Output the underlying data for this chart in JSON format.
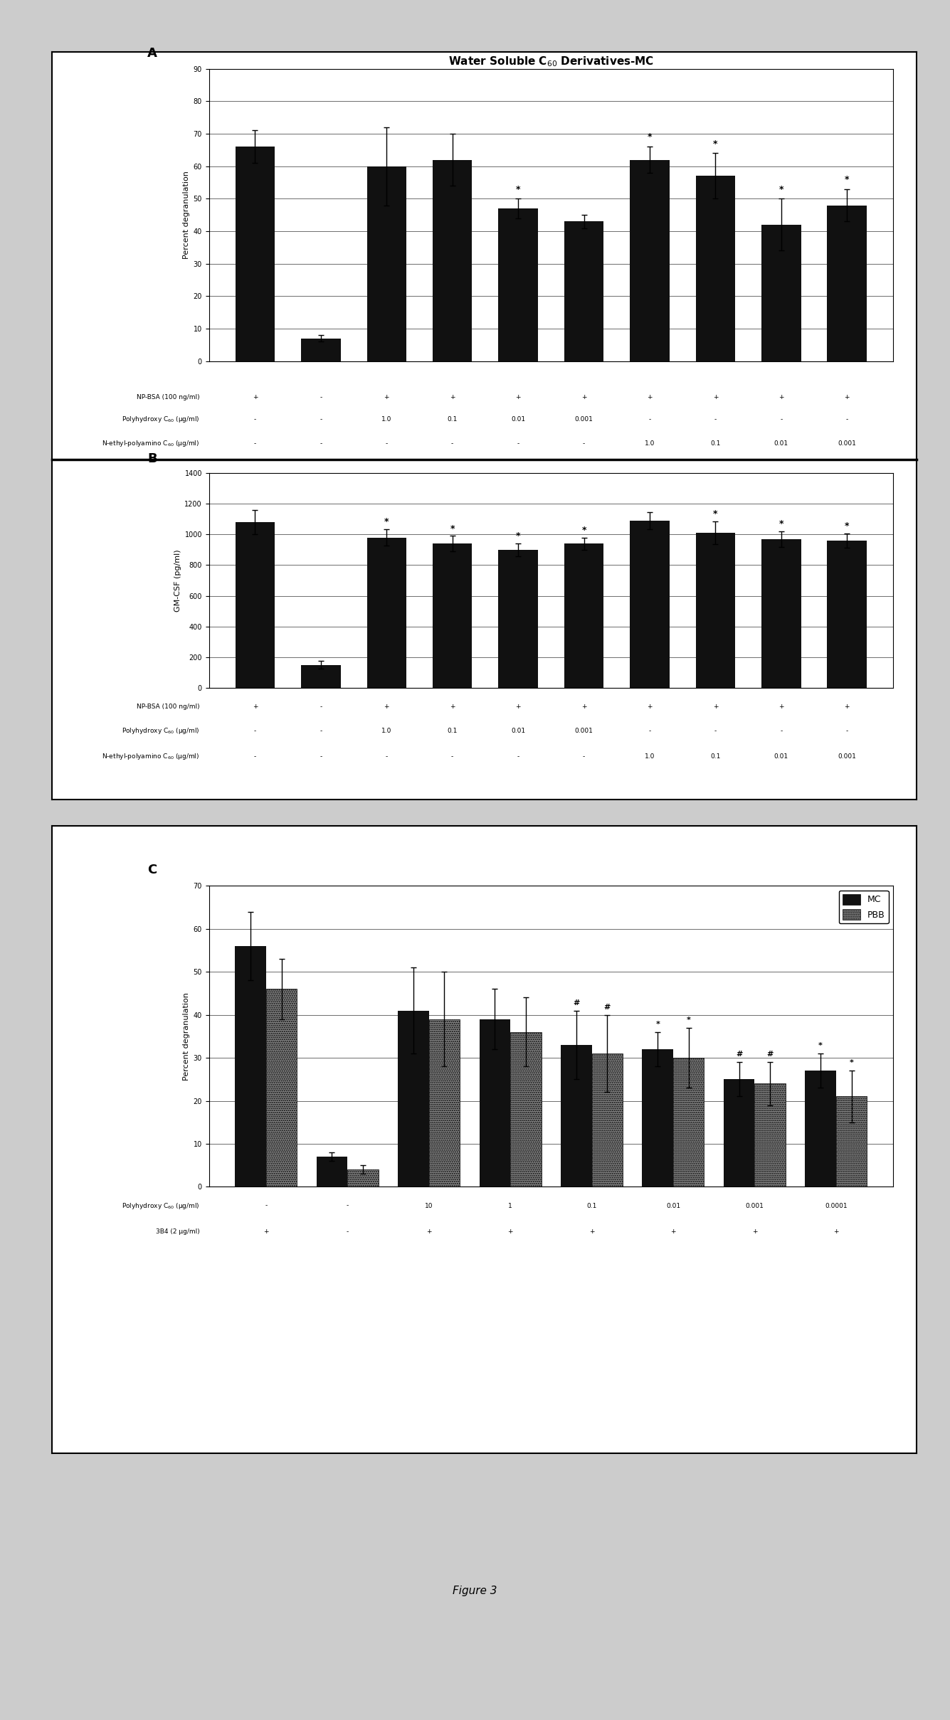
{
  "title": "Water Soluble C$_{60}$ Derivatives-MC",
  "panel_A": {
    "label": "A",
    "ylabel": "Percent degranulation",
    "ylim": [
      0,
      90
    ],
    "yticks": [
      0,
      10,
      20,
      30,
      40,
      50,
      60,
      70,
      80,
      90
    ],
    "bar_values": [
      66,
      7,
      60,
      62,
      47,
      43,
      62,
      57,
      42,
      48
    ],
    "bar_errors": [
      5,
      1,
      12,
      8,
      3,
      2,
      4,
      7,
      8,
      5
    ],
    "star_indices": [
      4,
      6,
      7,
      8,
      9
    ],
    "row1_label": "NP-BSA (100 ng/ml)",
    "row2_label": "Polyhydroxy C$_{60}$ (μg/ml)",
    "row3_label": "N-ethyl-polyamino C$_{60}$ (μg/ml)",
    "row1_values": [
      "+",
      "-",
      "+",
      "+",
      "+",
      "+",
      "+",
      "+",
      "+",
      "+"
    ],
    "row2_values": [
      "-",
      "-",
      "1.0",
      "0.1",
      "0.01",
      "0.001",
      "-",
      "-",
      "-",
      "-"
    ],
    "row3_values": [
      "-",
      "-",
      "-",
      "-",
      "-",
      "-",
      "1.0",
      "0.1",
      "0.01",
      "0.001"
    ]
  },
  "panel_B": {
    "label": "B",
    "ylabel": "GM-CSF (pg/ml)",
    "ylim": [
      0,
      1400
    ],
    "yticks": [
      0,
      200,
      400,
      600,
      800,
      1000,
      1200,
      1400
    ],
    "bar_values": [
      1080,
      150,
      980,
      940,
      900,
      940,
      1090,
      1010,
      970,
      960
    ],
    "bar_errors": [
      80,
      25,
      55,
      50,
      40,
      40,
      55,
      75,
      50,
      45
    ],
    "star_indices": [
      2,
      3,
      4,
      5,
      7,
      8,
      9
    ],
    "row1_label": "NP-BSA (100 ng/ml)",
    "row2_label": "Polyhydroxy C$_{60}$ (μg/ml)",
    "row3_label": "N-ethyl-polyamino C$_{60}$ (μg/ml)",
    "row1_values": [
      "+",
      "-",
      "+",
      "+",
      "+",
      "+",
      "+",
      "+",
      "+",
      "+"
    ],
    "row2_values": [
      "-",
      "-",
      "1.0",
      "0.1",
      "0.01",
      "0.001",
      "-",
      "-",
      "-",
      "-"
    ],
    "row3_values": [
      "-",
      "-",
      "-",
      "-",
      "-",
      "-",
      "1.0",
      "0.1",
      "0.01",
      "0.001"
    ]
  },
  "panel_C": {
    "label": "C",
    "ylabel": "Percent degranulation",
    "ylim": [
      0,
      70
    ],
    "yticks": [
      0,
      10,
      20,
      30,
      40,
      50,
      60,
      70
    ],
    "mc_values": [
      56,
      7,
      41,
      39,
      33,
      32,
      25,
      27
    ],
    "mc_errors": [
      8,
      1,
      10,
      7,
      8,
      4,
      4,
      4
    ],
    "pbb_values": [
      46,
      4,
      39,
      36,
      31,
      30,
      24,
      21
    ],
    "pbb_errors": [
      7,
      1,
      11,
      8,
      9,
      7,
      5,
      6
    ],
    "star_mc_indices": [
      5,
      7
    ],
    "hash_mc_indices": [
      4,
      6
    ],
    "star_pbb_indices": [
      5,
      7
    ],
    "hash_pbb_indices": [
      4,
      6
    ],
    "row1_label": "Polyhydroxy C$_{60}$ (μg/ml)",
    "row2_label": "3B4 (2 μg/ml)",
    "row1_values": [
      "-",
      "-",
      "10",
      "1",
      "0.1",
      "0.01",
      "0.001",
      "0.0001"
    ],
    "row2_values": [
      "+",
      "-",
      "+",
      "+",
      "+",
      "+",
      "+",
      "+"
    ],
    "legend_mc": "MC",
    "legend_pbb": "PBB"
  },
  "figure_label": "Figure 3",
  "bar_color": "#111111",
  "fig_bg": "#cccccc",
  "box_bg": "#ffffff"
}
